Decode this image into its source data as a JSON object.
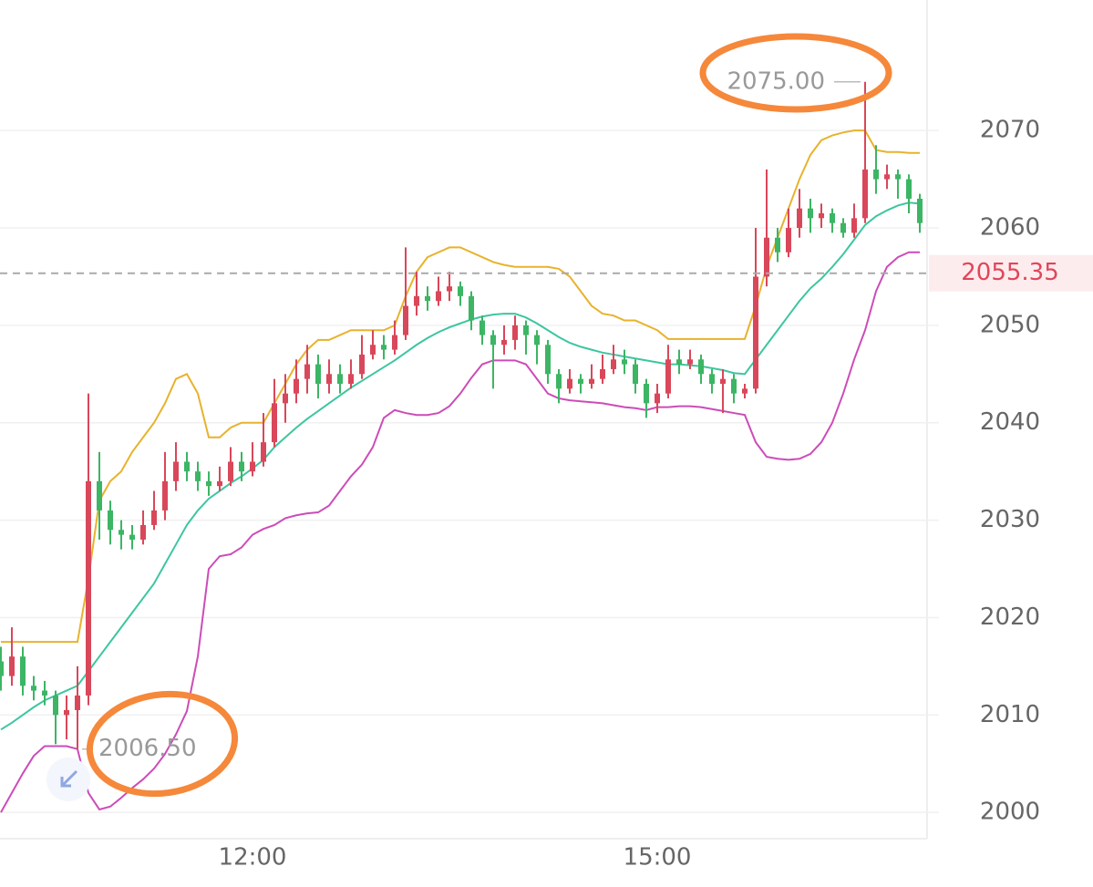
{
  "chart_data": {
    "type": "candlestick",
    "categories": [
      null,
      null,
      null,
      null,
      null,
      null,
      null,
      null,
      null,
      null,
      null,
      null,
      null,
      null,
      null,
      null,
      null,
      null,
      null,
      null,
      null,
      null,
      null,
      "12:00",
      null,
      null,
      null,
      null,
      null,
      null,
      null,
      null,
      null,
      null,
      null,
      null,
      null,
      null,
      null,
      null,
      null,
      null,
      null,
      null,
      null,
      null,
      null,
      null,
      null,
      null,
      null,
      null,
      null,
      null,
      null,
      null,
      null,
      null,
      null,
      null,
      "15:00",
      null,
      null,
      null,
      null,
      null,
      null,
      null,
      null,
      null,
      null,
      null,
      null,
      null,
      null,
      null,
      null,
      null,
      null,
      null,
      null,
      null,
      null,
      null,
      null
    ],
    "open": [
      2015.5,
      2014,
      2016,
      2013,
      2012.5,
      2012,
      2010,
      2010.5,
      2012,
      2034,
      2031,
      2029,
      2028.5,
      2028,
      2029.5,
      2031,
      2034,
      2036,
      2035,
      2034,
      2033.5,
      2034,
      2036,
      2035,
      2036,
      2038,
      2042,
      2043,
      2044.5,
      2046,
      2044,
      2045,
      2044,
      2045,
      2047,
      2048,
      2047.5,
      2049,
      2052,
      2053,
      2052.5,
      2053.5,
      2054,
      2053,
      2050.5,
      2049,
      2048,
      2048.5,
      2050,
      2049,
      2048,
      2045,
      2043.5,
      2044.5,
      2044,
      2044.5,
      2045.5,
      2046.5,
      2046,
      2044,
      2042,
      2043,
      2046.5,
      2046,
      2046.5,
      2045,
      2044,
      2044.5,
      2043,
      2043.5,
      2055,
      2059,
      2057.5,
      2060,
      2062,
      2061,
      2061.5,
      2060.5,
      2059.5,
      2061,
      2066,
      2065,
      2065.5,
      2065,
      2063
    ],
    "high": [
      2017,
      2019,
      2017,
      2014,
      2013.5,
      2012.5,
      2012,
      2015,
      2043,
      2037,
      2032,
      2030,
      2029.5,
      2031,
      2033,
      2037,
      2038,
      2037,
      2036,
      2035,
      2035.5,
      2037.5,
      2037,
      2038,
      2041,
      2044.5,
      2045,
      2046.5,
      2048,
      2047,
      2046.5,
      2046,
      2046.5,
      2049,
      2049.5,
      2049,
      2050.5,
      2058,
      2055.5,
      2054,
      2055,
      2055.5,
      2054.5,
      2053.5,
      2051,
      2049.5,
      2050,
      2051,
      2050.5,
      2049.5,
      2048.5,
      2045.5,
      2045.5,
      2045,
      2046,
      2047,
      2048,
      2047.5,
      2046.5,
      2044.5,
      2044,
      2048,
      2047.5,
      2047.5,
      2047,
      2045.5,
      2045.5,
      2045,
      2044,
      2060,
      2066,
      2060,
      2062,
      2064,
      2063,
      2062.5,
      2062,
      2061,
      2062.5,
      2075,
      2068.5,
      2066.5,
      2066,
      2065.5,
      2063.5
    ],
    "low": [
      2012.5,
      2013,
      2012,
      2011.5,
      2011,
      2007,
      2007.5,
      2006.5,
      2011,
      2028,
      2027.5,
      2027,
      2027,
      2027.5,
      2029,
      2030,
      2033,
      2034,
      2033,
      2032.5,
      2033,
      2033.5,
      2034,
      2034.5,
      2035.5,
      2037.5,
      2040,
      2042,
      2043,
      2042.5,
      2043,
      2043,
      2043.5,
      2044.5,
      2046.5,
      2046.5,
      2047,
      2048.5,
      2051,
      2051.5,
      2052,
      2052.5,
      2052,
      2049.5,
      2048,
      2043.5,
      2047,
      2047.5,
      2047,
      2046,
      2044,
      2042,
      2043,
      2043,
      2043.5,
      2044,
      2045,
      2045,
      2043,
      2040.5,
      2041,
      2042.5,
      2045,
      2045.5,
      2044,
      2043,
      2041,
      2042,
      2042.5,
      2043,
      2054,
      2056.5,
      2057,
      2059,
      2059.5,
      2060,
      2059.5,
      2059,
      2059,
      2060.5,
      2063.5,
      2064,
      2063,
      2061.5,
      2059.5
    ],
    "close": [
      2014,
      2016,
      2013,
      2012.5,
      2012,
      2010,
      2010.5,
      2012,
      2034,
      2031,
      2029,
      2028.5,
      2028,
      2029.5,
      2031,
      2034,
      2036,
      2035,
      2034,
      2033.5,
      2034,
      2036,
      2035,
      2036,
      2038,
      2042,
      2043,
      2044.5,
      2046,
      2044,
      2045,
      2044,
      2045,
      2047,
      2048,
      2047.5,
      2049,
      2052,
      2053,
      2052.5,
      2053.5,
      2054,
      2053,
      2050.5,
      2049,
      2048,
      2048.5,
      2050,
      2049,
      2048,
      2045,
      2043.5,
      2044.5,
      2044,
      2044.5,
      2045.5,
      2046.5,
      2046,
      2044,
      2042,
      2043,
      2046.5,
      2046,
      2046.5,
      2045,
      2044,
      2044.5,
      2043,
      2043.5,
      2055,
      2059,
      2057.5,
      2060,
      2062,
      2061,
      2061.5,
      2060.5,
      2059.5,
      2061,
      2066,
      2065,
      2065.5,
      2065,
      2063,
      2060.5
    ],
    "up_color": "#d9475a",
    "down_color": "#3cb564",
    "bands": [
      {
        "color": "#e8b22c",
        "values": [
          2017.5,
          2017.5,
          2017.5,
          2017.5,
          2017.5,
          2017.5,
          2017.5,
          2017.5,
          2024,
          2032,
          2034,
          2035,
          2037,
          2038.5,
          2040,
          2042,
          2044.5,
          2045,
          2043,
          2038.5,
          2038.5,
          2039.5,
          2040,
          2040,
          2040,
          2042,
          2044,
          2046,
          2047.5,
          2048.5,
          2048.5,
          2049,
          2049.5,
          2049.5,
          2049.5,
          2049.5,
          2050,
          2053,
          2055.5,
          2057,
          2057.5,
          2058,
          2058,
          2057.5,
          2057,
          2056.5,
          2056.2,
          2056,
          2056,
          2056,
          2056,
          2055.8,
          2055,
          2053.5,
          2052,
          2051.2,
          2051,
          2050.5,
          2050.5,
          2050,
          2049.5,
          2048.6,
          2048.6,
          2048.6,
          2048.6,
          2048.6,
          2048.6,
          2048.6,
          2048.6,
          2052,
          2056,
          2059,
          2062,
          2065,
          2067.5,
          2069,
          2069.5,
          2069.8,
          2070,
          2070,
          2068,
          2067.8,
          2067.8,
          2067.7,
          2067.7
        ]
      },
      {
        "color": "#3cc6a0",
        "values": [
          2008.5,
          2009.2,
          2010,
          2010.8,
          2011.5,
          2012,
          2012.5,
          2013,
          2014.5,
          2016,
          2017.5,
          2019,
          2020.5,
          2022,
          2023.5,
          2025.5,
          2027.5,
          2029.5,
          2031,
          2032.2,
          2033,
          2033.8,
          2034.5,
          2035.3,
          2036.2,
          2037.5,
          2038.5,
          2039.5,
          2040.4,
          2041.2,
          2042,
          2042.8,
          2043.6,
          2044.3,
          2045,
          2045.7,
          2046.4,
          2047.2,
          2048,
          2048.7,
          2049.3,
          2049.8,
          2050.2,
          2050.6,
          2050.9,
          2051.1,
          2051.2,
          2051.2,
          2050.8,
          2050.2,
          2049.5,
          2048.8,
          2048.2,
          2047.8,
          2047.5,
          2047.2,
          2047,
          2046.8,
          2046.6,
          2046.4,
          2046.2,
          2046,
          2046,
          2045.9,
          2045.8,
          2045.6,
          2045.4,
          2045.1,
          2045,
          2046.5,
          2048,
          2049.5,
          2051,
          2052.5,
          2053.8,
          2054.8,
          2056,
          2057.3,
          2058.8,
          2060.3,
          2061.2,
          2061.8,
          2062.3,
          2062.6,
          2062.5
        ]
      },
      {
        "color": "#cc4cb8",
        "values": [
          2000,
          2002,
          2004,
          2005.8,
          2006.8,
          2006.8,
          2006.8,
          2006.5,
          2002,
          2000.3,
          2000.6,
          2001.5,
          2002.5,
          2003.4,
          2004.5,
          2006,
          2008,
          2010.4,
          2016,
          2025,
          2026.3,
          2026.5,
          2027.2,
          2028.5,
          2029.1,
          2029.5,
          2030.2,
          2030.5,
          2030.7,
          2030.8,
          2031.5,
          2033,
          2034.5,
          2035.7,
          2037.5,
          2040.5,
          2041.3,
          2041,
          2040.8,
          2040.8,
          2041,
          2041.7,
          2043,
          2044.6,
          2046,
          2046.4,
          2046.4,
          2046.4,
          2046,
          2044.5,
          2043,
          2042.5,
          2042.3,
          2042.2,
          2042.1,
          2042,
          2041.8,
          2041.6,
          2041.5,
          2041.3,
          2041.6,
          2041.6,
          2041.7,
          2041.7,
          2041.6,
          2041.4,
          2041.2,
          2041,
          2040.8,
          2038,
          2036.5,
          2036.3,
          2036.2,
          2036.3,
          2036.8,
          2038,
          2040,
          2043,
          2046.5,
          2049.5,
          2053.5,
          2056,
          2057,
          2057.5,
          2057.5
        ]
      }
    ],
    "ylim": [
      1997.3,
      2083.4
    ],
    "yticks": [
      2000,
      2010,
      2020,
      2030,
      2040,
      2050,
      2060,
      2070
    ],
    "grid": true,
    "last_price": 2055.35,
    "high_label": {
      "value": 2075,
      "label": "2075.00"
    },
    "low_label": {
      "value": 2006.5,
      "label": "2006.50"
    }
  }
}
